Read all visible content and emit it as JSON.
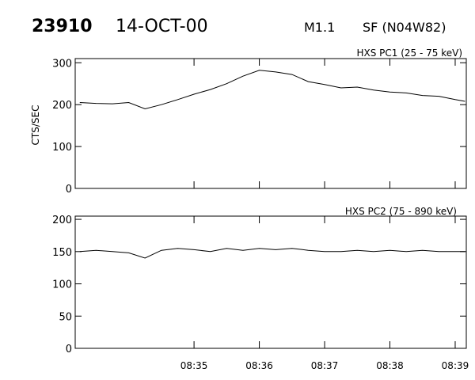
{
  "header": {
    "event_id": "23910",
    "date": "14-OCT-00",
    "flare_class": "M1.1",
    "location": "SF (N04W82)"
  },
  "chart_data": [
    {
      "type": "line",
      "title": "HXS PC1 (25 - 75 keV)",
      "ylabel": "CTS/SEC",
      "xlabel": "",
      "ylim": [
        0,
        310
      ],
      "yticks": [
        0,
        100,
        200,
        300
      ],
      "xticks": [
        "08:35",
        "08:36",
        "08:37",
        "08:38",
        "08:39"
      ],
      "grid": false,
      "legend": "none",
      "x_unit": "minutes after 08:34",
      "series": [
        {
          "x": [
            -0.75,
            -0.5,
            -0.25,
            0,
            0.25,
            0.5,
            0.75,
            1,
            1.25,
            1.5,
            1.75,
            2,
            2.25,
            2.5,
            2.75,
            3,
            3.25,
            3.5,
            3.75,
            4,
            4.25,
            4.5,
            4.75,
            5,
            5.15
          ],
          "y": [
            205,
            203,
            202,
            205,
            190,
            200,
            212,
            225,
            236,
            250,
            268,
            282,
            278,
            272,
            255,
            248,
            240,
            242,
            235,
            230,
            228,
            222,
            220,
            212,
            208
          ]
        }
      ]
    },
    {
      "type": "line",
      "title": "HXS PC2 (75 - 890 keV)",
      "ylabel": "",
      "xlabel": "",
      "ylim": [
        0,
        205
      ],
      "yticks": [
        0,
        50,
        100,
        150,
        200
      ],
      "xticks": [
        "08:35",
        "08:36",
        "08:37",
        "08:38",
        "08:39"
      ],
      "grid": false,
      "legend": "none",
      "x_unit": "minutes after 08:34",
      "series": [
        {
          "x": [
            -0.75,
            -0.5,
            -0.25,
            0,
            0.25,
            0.5,
            0.75,
            1,
            1.25,
            1.5,
            1.75,
            2,
            2.25,
            2.5,
            2.75,
            3,
            3.25,
            3.5,
            3.75,
            4,
            4.25,
            4.5,
            4.75,
            5,
            5.15
          ],
          "y": [
            150,
            152,
            150,
            148,
            140,
            152,
            155,
            153,
            150,
            155,
            152,
            155,
            153,
            155,
            152,
            150,
            150,
            152,
            150,
            152,
            150,
            152,
            150,
            150,
            150
          ]
        }
      ]
    }
  ]
}
